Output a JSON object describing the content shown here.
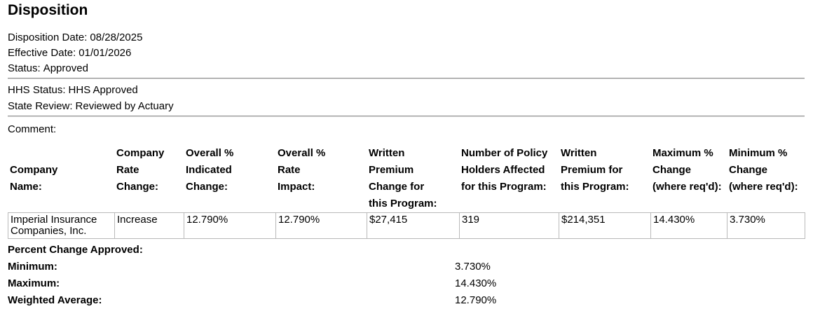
{
  "title": "Disposition",
  "summary": {
    "disposition_date": {
      "label": "Disposition Date:",
      "value": "08/28/2025"
    },
    "effective_date": {
      "label": "Effective Date:",
      "value": "01/01/2026"
    },
    "status": {
      "label": "Status:",
      "value": "Approved"
    },
    "hhs_status": {
      "label": "HHS Status:",
      "value": "HHS Approved"
    },
    "state_review": {
      "label": "State Review:",
      "value": "Reviewed by Actuary"
    },
    "comment_label": "Comment:"
  },
  "rate_table": {
    "headers": [
      "Company\nName:",
      "Company\nRate\nChange:",
      "Overall %\nIndicated\nChange:",
      "Overall %\nRate\nImpact:",
      "Written\nPremium\nChange for\nthis Program:",
      "Number of Policy\nHolders Affected\nfor this Program:",
      "Written\nPremium for\nthis Program:",
      "Maximum %\nChange\n(where req'd):",
      "Minimum %\nChange\n(where req'd):"
    ],
    "rows": [
      [
        "Imperial Insurance Companies, Inc.",
        "Increase",
        "12.790%",
        "12.790%",
        "$27,415",
        "319",
        "$214,351",
        "14.430%",
        "3.730%"
      ]
    ]
  },
  "approved_change": {
    "heading": "Percent Change Approved:",
    "rows": [
      {
        "label": "Minimum:",
        "value": "3.730%"
      },
      {
        "label": "Maximum:",
        "value": "14.430%"
      },
      {
        "label": "Weighted Average:",
        "value": "12.790%"
      }
    ]
  },
  "colors": {
    "table_border": "#b9b9b9",
    "rule": "#8f8f8f"
  }
}
